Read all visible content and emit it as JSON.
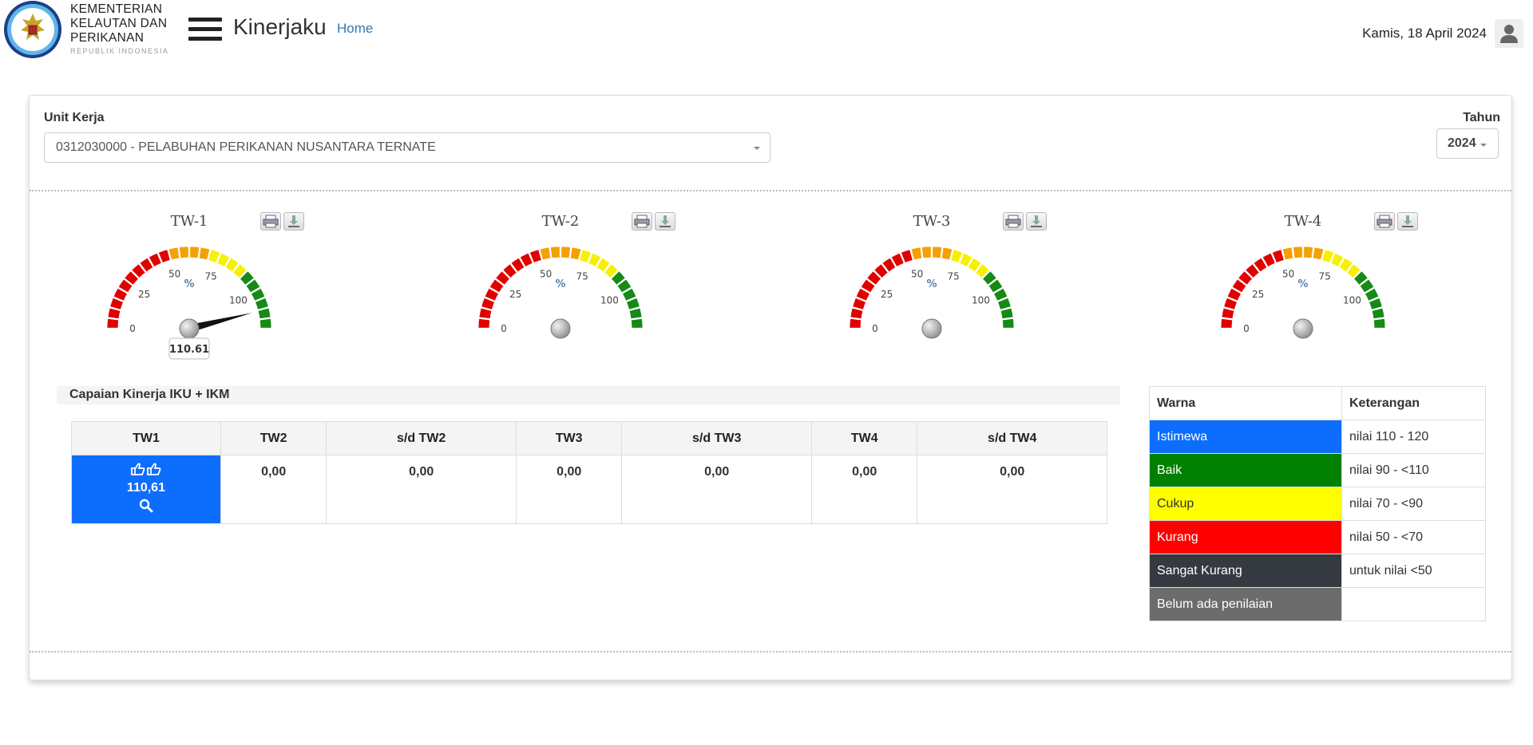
{
  "header": {
    "logo_lines": [
      "KEMENTERIAN",
      "KELAUTAN DAN",
      "PERIKANAN"
    ],
    "logo_sub": "REPUBLIK INDONESIA",
    "app_title": "Kinerjaku",
    "home_link": "Home",
    "date": "Kamis, 18 April 2024"
  },
  "filters": {
    "unit_label": "Unit Kerja",
    "unit_value": "0312030000 - PELABUHAN PERIKANAN NUSANTARA TERNATE",
    "tahun_label": "Tahun",
    "tahun_value": "2024"
  },
  "chart_data": {
    "type": "gauge",
    "min": 0,
    "max": 120,
    "unit": "%",
    "tick_labels": [
      "0",
      "25",
      "50",
      "75",
      "100"
    ],
    "bands": [
      {
        "from": 0,
        "to": 50,
        "color": "#e00000"
      },
      {
        "from": 50,
        "to": 70,
        "color": "#f5a000"
      },
      {
        "from": 70,
        "to": 90,
        "color": "#f7f000"
      },
      {
        "from": 90,
        "to": 120,
        "color": "#158a15"
      }
    ],
    "gauges": [
      {
        "title": "TW-1",
        "value": 110.61,
        "value_label": "110.61"
      },
      {
        "title": "TW-2",
        "value": null,
        "value_label": ""
      },
      {
        "title": "TW-3",
        "value": null,
        "value_label": ""
      },
      {
        "title": "TW-4",
        "value": null,
        "value_label": ""
      }
    ]
  },
  "icons": {
    "print": "printer-icon",
    "download": "download-icon",
    "thumbs": "thumbs-up-icon",
    "search": "magnifier-icon",
    "user": "user-icon"
  },
  "capaian": {
    "title": "Capaian Kinerja IKU + IKM",
    "headers": [
      "TW1",
      "TW2",
      "s/d TW2",
      "TW3",
      "s/d TW3",
      "TW4",
      "s/d TW4"
    ],
    "values": [
      "110,61",
      "0,00",
      "0,00",
      "0,00",
      "0,00",
      "0,00",
      "0,00"
    ],
    "tw1_color": "#0d6efd"
  },
  "legend": {
    "headers": [
      "Warna",
      "Keterangan"
    ],
    "rows": [
      {
        "label": "Istimewa",
        "desc": "nilai 110 - 120",
        "color": "#0d6efd"
      },
      {
        "label": "Baik",
        "desc": "nilai 90 - <110",
        "color": "#008000"
      },
      {
        "label": "Cukup",
        "desc": "nilai 70 - <90",
        "color": "#ffff00"
      },
      {
        "label": "Kurang",
        "desc": "nilai 50 - <70",
        "color": "#ff0000"
      },
      {
        "label": "Sangat Kurang",
        "desc": "untuk nilai <50",
        "color": "#343a40"
      },
      {
        "label": "Belum ada penilaian",
        "desc": "",
        "color": "#6c6c6c"
      }
    ]
  }
}
